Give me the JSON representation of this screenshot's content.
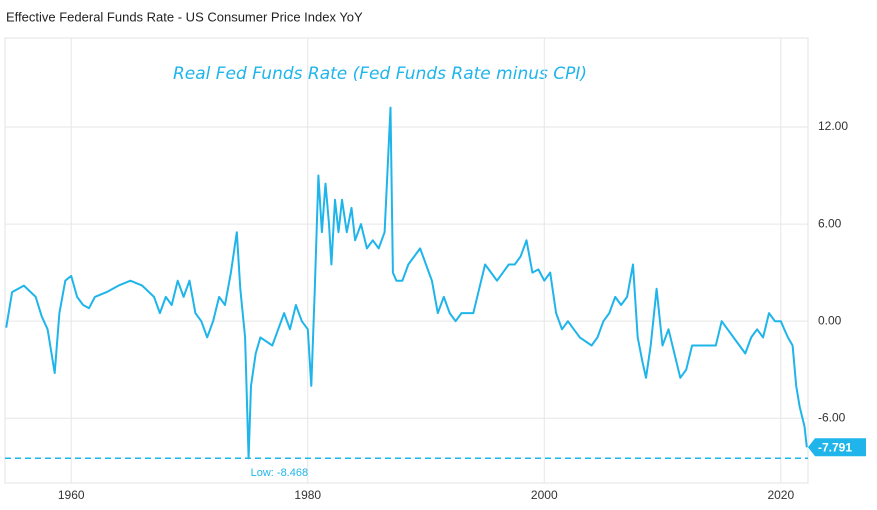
{
  "chart_data": {
    "type": "line",
    "title": "Effective Federal Funds Rate - US Consumer Price Index YoY",
    "annotation": "Real Fed Funds Rate (Fed Funds Rate minus CPI)",
    "color": "#1fb5ea",
    "x": [
      1954.5,
      1955,
      1956,
      1957,
      1957.5,
      1958,
      1958.6,
      1959,
      1959.5,
      1960,
      1960.5,
      1961,
      1961.5,
      1962,
      1963,
      1964,
      1965,
      1966,
      1967,
      1967.5,
      1968,
      1968.5,
      1969,
      1969.5,
      1970,
      1970.5,
      1971,
      1971.5,
      1972,
      1972.5,
      1973,
      1973.5,
      1974,
      1974.3,
      1974.7,
      1975,
      1975.2,
      1975.6,
      1976,
      1977,
      1977.5,
      1978,
      1978.5,
      1979,
      1979.5,
      1980,
      1980.3,
      1980.6,
      1980.9,
      1981.2,
      1981.5,
      1981.8,
      1982,
      1982.3,
      1982.6,
      1982.9,
      1983.3,
      1983.7,
      1984,
      1984.5,
      1985,
      1985.5,
      1986,
      1986.5,
      1987,
      1987.2,
      1987.5,
      1988,
      1988.5,
      1989,
      1989.5,
      1990,
      1990.5,
      1991,
      1991.5,
      1992,
      1992.5,
      1993,
      1994,
      1994.5,
      1995,
      1995.5,
      1996,
      1997,
      1997.5,
      1998,
      1998.5,
      1999,
      1999.5,
      2000,
      2000.5,
      2001,
      2001.5,
      2002,
      2002.5,
      2003,
      2004,
      2004.5,
      2005,
      2005.5,
      2006,
      2006.5,
      2007,
      2007.5,
      2007.9,
      2008.3,
      2008.6,
      2009,
      2009.5,
      2010,
      2010.5,
      2011,
      2011.5,
      2012,
      2012.5,
      2013,
      2014,
      2014.5,
      2015,
      2015.5,
      2016,
      2017,
      2017.5,
      2018,
      2018.5,
      2019,
      2019.5,
      2020,
      2020.3,
      2020.6,
      2021,
      2021.3,
      2021.6,
      2022,
      2022.2
    ],
    "values": [
      -0.4,
      1.8,
      2.2,
      1.5,
      0.3,
      -0.5,
      -3.2,
      0.5,
      2.5,
      2.8,
      1.5,
      1.0,
      0.8,
      1.5,
      1.8,
      2.2,
      2.5,
      2.2,
      1.5,
      0.5,
      1.5,
      1.0,
      2.5,
      1.5,
      2.5,
      0.5,
      0.0,
      -1.0,
      0.0,
      1.5,
      1.0,
      3.0,
      5.5,
      2.0,
      -1.0,
      -8.468,
      -4.0,
      -2.0,
      -1.0,
      -1.5,
      -0.5,
      0.5,
      -0.5,
      1.0,
      0.0,
      -0.5,
      -4.0,
      2.0,
      9.0,
      5.5,
      8.5,
      6.0,
      3.5,
      7.5,
      5.5,
      7.5,
      5.5,
      7.0,
      5.0,
      6.0,
      4.5,
      5.0,
      4.5,
      5.5,
      13.2,
      3.0,
      2.5,
      2.5,
      3.5,
      4.0,
      4.5,
      3.5,
      2.5,
      0.5,
      1.5,
      0.5,
      0.0,
      0.5,
      0.5,
      2.0,
      3.5,
      3.0,
      2.5,
      3.5,
      3.5,
      4.0,
      5.0,
      3.0,
      3.2,
      2.5,
      3.0,
      0.5,
      -0.5,
      0.0,
      -0.5,
      -1.0,
      -1.5,
      -1.0,
      0.0,
      0.5,
      1.5,
      1.0,
      1.5,
      3.5,
      -1.0,
      -2.5,
      -3.5,
      -1.5,
      2.0,
      -1.5,
      -0.5,
      -2.0,
      -3.5,
      -3.0,
      -1.5,
      -1.5,
      -1.5,
      -1.5,
      0.0,
      -0.5,
      -1.0,
      -2.0,
      -1.0,
      -0.5,
      -1.0,
      0.5,
      0.0,
      0.0,
      -0.5,
      -1.0,
      -1.5,
      -4.0,
      -5.3,
      -6.5,
      -7.791
    ],
    "low_line": {
      "value": -8.468,
      "label": "Low: -8.468"
    },
    "xlim": [
      1954.4,
      2022.3
    ],
    "ylim": [
      -10,
      17.5
    ],
    "xticks": [
      1960,
      1980,
      2000,
      2020
    ],
    "yticks": [
      {
        "value": -6,
        "label": "-6.00"
      },
      {
        "value": 0,
        "label": "0.00"
      },
      {
        "value": 6,
        "label": "6.00"
      },
      {
        "value": 12,
        "label": "12.00"
      }
    ],
    "grid": true
  }
}
